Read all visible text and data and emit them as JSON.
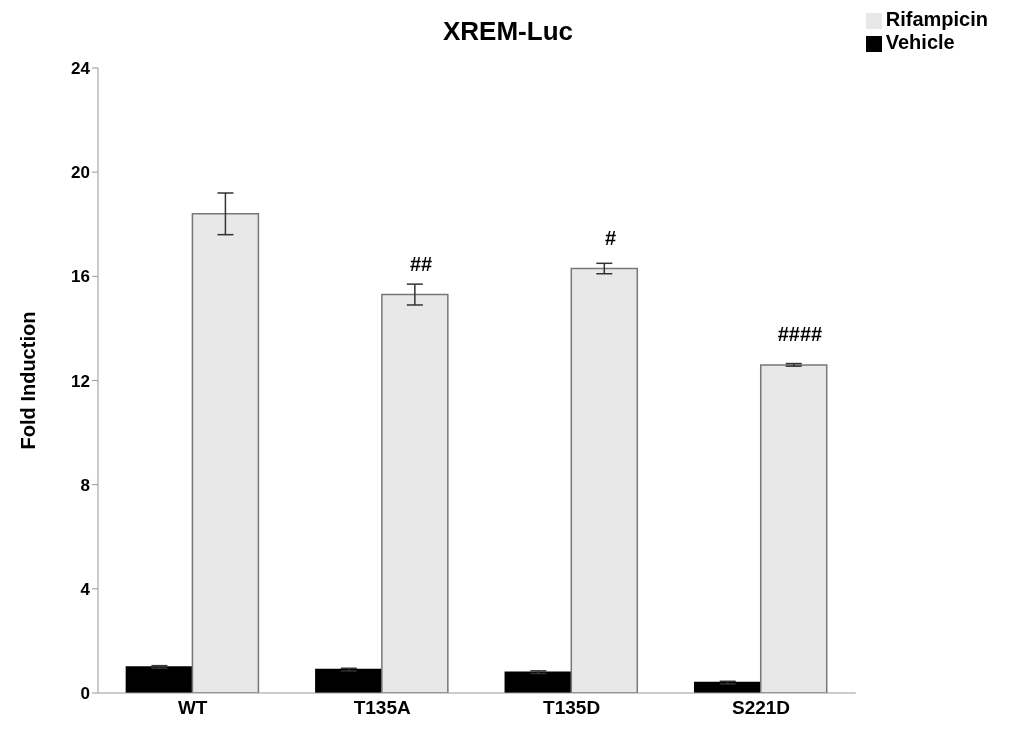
{
  "chart_data": {
    "type": "bar",
    "title": "XREM-Luc",
    "ylabel": "Fold Induction",
    "categories": [
      "WT",
      "T135A",
      "T135D",
      "S221D"
    ],
    "series": [
      {
        "name": "Vehicle",
        "color": "#000000",
        "values": [
          1.0,
          0.9,
          0.8,
          0.4
        ],
        "errors": [
          0.05,
          0.05,
          0.05,
          0.05
        ]
      },
      {
        "name": "Rifampicin",
        "color": "#e8e8e8",
        "values": [
          18.4,
          15.3,
          16.3,
          12.6
        ],
        "errors": [
          0.8,
          0.4,
          0.2,
          0.05
        ]
      }
    ],
    "ylim": [
      0,
      24
    ],
    "yticks": [
      0,
      4,
      8,
      12,
      16,
      20,
      24
    ],
    "grid": false,
    "legend": "top right",
    "annotations": [
      {
        "text": "##",
        "x": "T135A",
        "y": 15.3
      },
      {
        "text": "#",
        "x": "T135D",
        "y": 16.3
      },
      {
        "text": "####",
        "x": "S221D",
        "y": 12.6
      }
    ]
  }
}
